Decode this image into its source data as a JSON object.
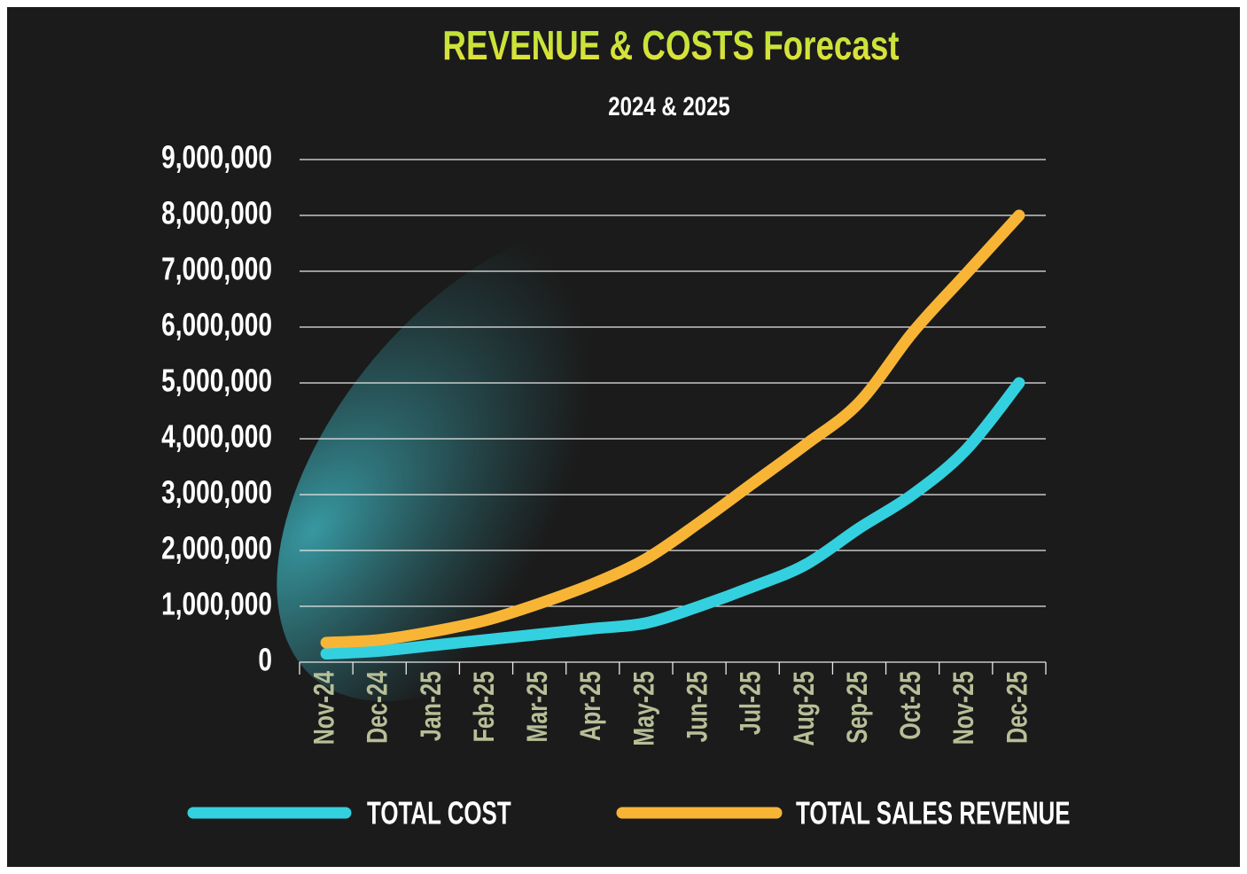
{
  "chart_data": {
    "type": "line",
    "title": "REVENUE & COSTS Forecast",
    "subtitle": "2024 & 2025",
    "categories": [
      "Nov-24",
      "Dec-24",
      "Jan-25",
      "Feb-25",
      "Mar-25",
      "Apr-25",
      "May-25",
      "Jun-25",
      "Jul-25",
      "Aug-25",
      "Sep-25",
      "Oct-25",
      "Nov-25",
      "Dec-25"
    ],
    "series": [
      {
        "name": "TOTAL COST",
        "color": "#33d1e0",
        "values": [
          150000,
          200000,
          300000,
          400000,
          500000,
          600000,
          700000,
          1000000,
          1350000,
          1750000,
          2400000,
          3000000,
          3800000,
          5000000
        ]
      },
      {
        "name": "TOTAL SALES REVENUE",
        "color": "#f8b535",
        "values": [
          350000,
          400000,
          550000,
          750000,
          1050000,
          1400000,
          1850000,
          2500000,
          3200000,
          3900000,
          4650000,
          5900000,
          6950000,
          8000000
        ]
      }
    ],
    "ylim": [
      0,
      9000000
    ],
    "yticks": [
      0,
      {
        "value": 1000000,
        "label": "1,000,000"
      },
      {
        "value": 2000000,
        "label": "2,000,000"
      },
      {
        "value": 3000000,
        "label": "3,000,000"
      },
      {
        "value": 4000000,
        "label": "4,000,000"
      },
      {
        "value": 5000000,
        "label": "5,000,000"
      },
      {
        "value": 6000000,
        "label": "6,000,000"
      },
      {
        "value": 7000000,
        "label": "7,000,000"
      },
      {
        "value": 8000000,
        "label": "8,000,000"
      },
      {
        "value": 9000000,
        "label": "9,000,000"
      }
    ],
    "grid": true,
    "legend": "bottom"
  }
}
